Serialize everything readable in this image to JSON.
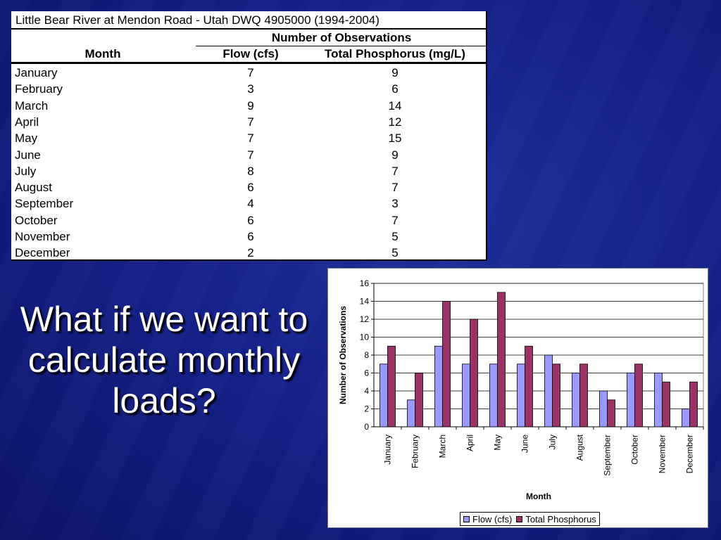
{
  "table": {
    "caption": "Little Bear River at Mendon Road - Utah DWQ 4905000 (1994-2004)",
    "group_header": "Number of Observations",
    "headers": {
      "month": "Month",
      "flow": "Flow (cfs)",
      "tp": "Total Phosphorus (mg/L)"
    },
    "rows": [
      {
        "month": "January",
        "flow": "7",
        "tp": "9"
      },
      {
        "month": "February",
        "flow": "3",
        "tp": "6"
      },
      {
        "month": "March",
        "flow": "9",
        "tp": "14"
      },
      {
        "month": "April",
        "flow": "7",
        "tp": "12"
      },
      {
        "month": "May",
        "flow": "7",
        "tp": "15"
      },
      {
        "month": "June",
        "flow": "7",
        "tp": "9"
      },
      {
        "month": "July",
        "flow": "8",
        "tp": "7"
      },
      {
        "month": "August",
        "flow": "6",
        "tp": "7"
      },
      {
        "month": "September",
        "flow": "4",
        "tp": "3"
      },
      {
        "month": "October",
        "flow": "6",
        "tp": "7"
      },
      {
        "month": "November",
        "flow": "6",
        "tp": "5"
      },
      {
        "month": "December",
        "flow": "2",
        "tp": "5"
      }
    ]
  },
  "question": "What if we want to calculate monthly loads?",
  "chart_data": {
    "type": "bar",
    "categories": [
      "January",
      "February",
      "March",
      "April",
      "May",
      "June",
      "July",
      "August",
      "September",
      "October",
      "November",
      "December"
    ],
    "series": [
      {
        "name": "Flow (cfs)",
        "color": "#9999ff",
        "values": [
          7,
          3,
          9,
          7,
          7,
          7,
          8,
          6,
          4,
          6,
          6,
          2
        ]
      },
      {
        "name": "Total Phosphorus",
        "color": "#993366",
        "values": [
          9,
          6,
          14,
          12,
          15,
          9,
          7,
          7,
          3,
          7,
          5,
          5
        ]
      }
    ],
    "xlabel": "Month",
    "ylabel": "Number of Observations",
    "ylim": [
      0,
      16
    ],
    "yticks": [
      0,
      2,
      4,
      6,
      8,
      10,
      12,
      14,
      16
    ],
    "grid": true,
    "legend": "bottom"
  }
}
